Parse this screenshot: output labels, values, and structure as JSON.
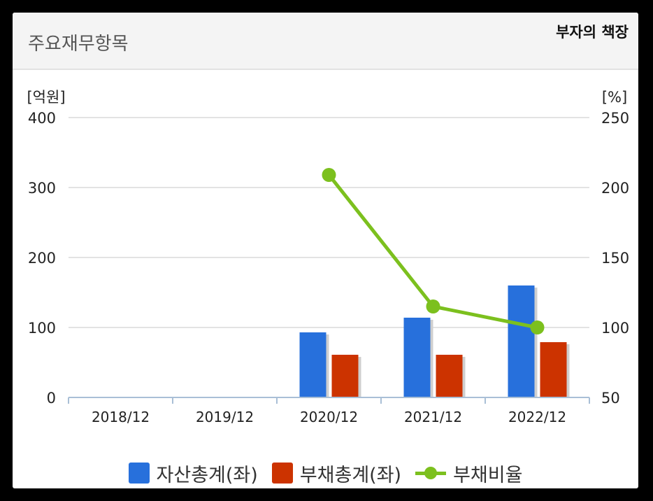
{
  "header": {
    "title": "주요재무항목",
    "brand": "부자의 책장"
  },
  "chart_data": {
    "type": "bar",
    "categories": [
      "2018/12",
      "2019/12",
      "2020/12",
      "2021/12",
      "2022/12"
    ],
    "series": [
      {
        "name": "자산총계(좌)",
        "type": "bar",
        "axis": "left",
        "color": "#2770dc",
        "values": [
          null,
          null,
          93,
          114,
          160
        ]
      },
      {
        "name": "부채총계(좌)",
        "type": "bar",
        "axis": "left",
        "color": "#cc3300",
        "values": [
          null,
          null,
          61,
          61,
          79
        ]
      },
      {
        "name": "부채비율",
        "type": "line",
        "axis": "right",
        "color": "#7cc01e",
        "values": [
          null,
          null,
          209,
          115,
          100
        ]
      }
    ],
    "y_left": {
      "unit": "[억원]",
      "lim": [
        0,
        400
      ],
      "ticks": [
        0,
        100,
        200,
        300,
        400
      ]
    },
    "y_right": {
      "unit": "[%]",
      "lim": [
        50,
        250
      ],
      "ticks": [
        50,
        100,
        150,
        200,
        250
      ]
    },
    "grid": true,
    "legend": "bottom-center"
  }
}
